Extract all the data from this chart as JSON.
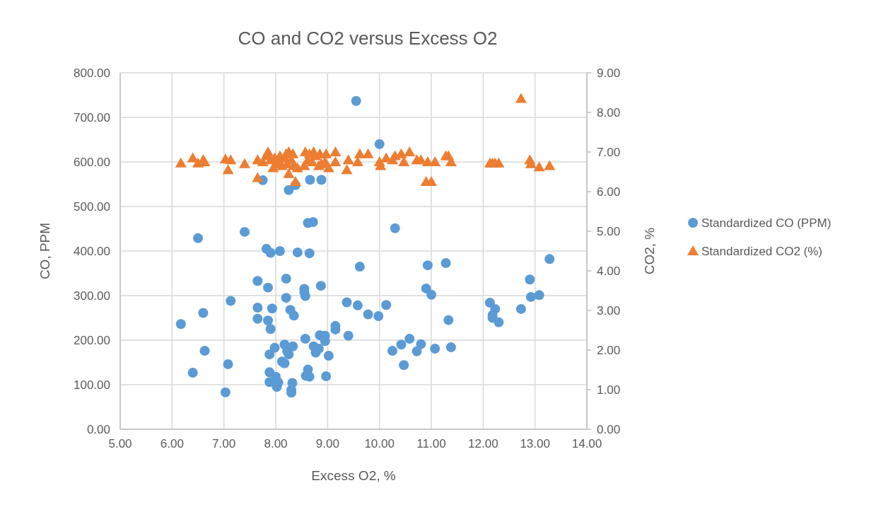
{
  "chart_data": {
    "type": "scatter",
    "title": "CO and CO2 versus Excess O2",
    "xlabel": "Excess O2, %",
    "ylabel": "CO, PPM",
    "y2label": "CO2, %",
    "legend": "right",
    "grid": true,
    "xlim": [
      5,
      14
    ],
    "xticks": [
      {
        "value": 5,
        "label": "5.00"
      },
      {
        "value": 6,
        "label": "6.00"
      },
      {
        "value": 7,
        "label": "7.00"
      },
      {
        "value": 8,
        "label": "8.00"
      },
      {
        "value": 9,
        "label": "9.00"
      },
      {
        "value": 10,
        "label": "10.00"
      },
      {
        "value": 11,
        "label": "11.00"
      },
      {
        "value": 12,
        "label": "12.00"
      },
      {
        "value": 13,
        "label": "13.00"
      },
      {
        "value": 14,
        "label": "14.00"
      }
    ],
    "ylim": [
      0,
      800
    ],
    "yticks": [
      {
        "value": 0,
        "label": "0.00"
      },
      {
        "value": 100,
        "label": "100.00"
      },
      {
        "value": 200,
        "label": "200.00"
      },
      {
        "value": 300,
        "label": "300.00"
      },
      {
        "value": 400,
        "label": "400.00"
      },
      {
        "value": 500,
        "label": "500.00"
      },
      {
        "value": 600,
        "label": "600.00"
      },
      {
        "value": 700,
        "label": "700.00"
      },
      {
        "value": 800,
        "label": "800.00"
      }
    ],
    "y2lim": [
      0,
      9
    ],
    "y2ticks": [
      {
        "value": 0,
        "label": "0.00"
      },
      {
        "value": 1,
        "label": "1.00"
      },
      {
        "value": 2,
        "label": "2.00"
      },
      {
        "value": 3,
        "label": "3.00"
      },
      {
        "value": 4,
        "label": "4.00"
      },
      {
        "value": 5,
        "label": "5.00"
      },
      {
        "value": 6,
        "label": "6.00"
      },
      {
        "value": 7,
        "label": "7.00"
      },
      {
        "value": 8,
        "label": "8.00"
      },
      {
        "value": 9,
        "label": "9.00"
      }
    ],
    "series": [
      {
        "name": "Standardized CO (PPM)",
        "color": "#5b9bd5",
        "marker": "circle",
        "x": [
          6.17,
          6.4,
          6.5,
          6.6,
          6.63,
          7.03,
          7.08,
          7.13,
          7.4,
          7.65,
          7.65,
          7.65,
          7.75,
          7.82,
          7.85,
          7.85,
          7.88,
          7.88,
          7.88,
          7.9,
          7.9,
          7.93,
          7.98,
          8.0,
          8.02,
          8.05,
          8.08,
          8.12,
          8.17,
          8.17,
          8.2,
          8.2,
          8.22,
          8.25,
          8.25,
          8.28,
          8.3,
          8.3,
          8.32,
          8.33,
          8.35,
          8.38,
          8.42,
          8.55,
          8.55,
          8.57,
          8.57,
          8.58,
          8.62,
          8.62,
          8.65,
          8.65,
          8.66,
          8.72,
          8.73,
          8.77,
          8.83,
          8.85,
          8.87,
          8.88,
          8.95,
          8.95,
          8.97,
          9.02,
          9.15,
          9.15,
          9.37,
          9.4,
          9.55,
          9.58,
          9.62,
          9.78,
          9.98,
          10.0,
          10.13,
          10.25,
          10.3,
          10.42,
          10.47,
          10.58,
          10.72,
          10.8,
          10.9,
          10.93,
          11.0,
          11.07,
          11.28,
          11.33,
          11.38,
          12.13,
          12.18,
          12.18,
          12.23,
          12.3,
          12.73,
          12.9,
          12.92,
          13.08,
          13.28
        ],
        "values": [
          236,
          127,
          429,
          261,
          176,
          83,
          146,
          288,
          443,
          273,
          248,
          333,
          559,
          405,
          318,
          244,
          128,
          168,
          106,
          396,
          225,
          271,
          183,
          118,
          95,
          105,
          400,
          152,
          190,
          148,
          338,
          295,
          175,
          537,
          168,
          268,
          88,
          82,
          104,
          186,
          255,
          548,
          397,
          315,
          308,
          299,
          203,
          120,
          134,
          463,
          395,
          118,
          560,
          465,
          186,
          172,
          181,
          211,
          322,
          560,
          210,
          198,
          119,
          165,
          232,
          224,
          285,
          210,
          737,
          278,
          365,
          258,
          254,
          640,
          279,
          176,
          451,
          190,
          144,
          203,
          175,
          191,
          316,
          368,
          302,
          181,
          373,
          245,
          184,
          284,
          256,
          250,
          270,
          240,
          270,
          336,
          297,
          301,
          382
        ]
      },
      {
        "name": "Standardized CO2 (%)",
        "color": "#ed7d31",
        "marker": "triangle",
        "axis": "y2",
        "x": [
          6.17,
          6.4,
          6.5,
          6.6,
          6.63,
          7.03,
          7.08,
          7.13,
          7.4,
          7.65,
          7.65,
          7.75,
          7.82,
          7.85,
          7.9,
          7.95,
          7.98,
          8.02,
          8.05,
          8.08,
          8.12,
          8.17,
          8.2,
          8.22,
          8.25,
          8.25,
          8.3,
          8.33,
          8.35,
          8.38,
          8.42,
          8.55,
          8.57,
          8.62,
          8.65,
          8.7,
          8.73,
          8.77,
          8.83,
          8.85,
          8.88,
          8.95,
          8.97,
          9.02,
          9.15,
          9.15,
          9.37,
          9.4,
          9.58,
          9.62,
          9.78,
          10.0,
          10.02,
          10.13,
          10.25,
          10.3,
          10.42,
          10.47,
          10.58,
          10.72,
          10.8,
          10.9,
          10.93,
          11.0,
          11.07,
          11.28,
          11.33,
          11.38,
          12.13,
          12.18,
          12.23,
          12.3,
          12.73,
          12.9,
          12.92,
          13.08,
          13.28
        ],
        "values": [
          6.72,
          6.85,
          6.72,
          6.8,
          6.75,
          6.82,
          6.55,
          6.8,
          6.7,
          6.8,
          6.35,
          6.75,
          6.9,
          7.0,
          6.8,
          6.6,
          6.85,
          6.7,
          6.75,
          6.9,
          6.65,
          6.85,
          6.95,
          6.7,
          7.0,
          6.45,
          6.8,
          6.95,
          6.65,
          6.25,
          6.6,
          6.65,
          7.0,
          6.8,
          6.95,
          6.75,
          7.0,
          6.9,
          6.65,
          6.95,
          6.7,
          6.75,
          6.95,
          6.6,
          7.0,
          6.75,
          6.55,
          6.8,
          6.75,
          6.95,
          6.95,
          6.75,
          6.65,
          6.85,
          6.8,
          6.9,
          6.95,
          6.75,
          7.0,
          6.8,
          6.8,
          6.25,
          6.75,
          6.25,
          6.75,
          6.9,
          6.9,
          6.75,
          6.72,
          6.72,
          6.72,
          6.72,
          8.35,
          6.8,
          6.7,
          6.62,
          6.65
        ]
      }
    ]
  }
}
